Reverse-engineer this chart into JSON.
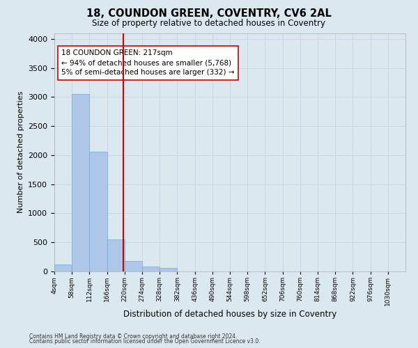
{
  "title": "18, COUNDON GREEN, COVENTRY, CV6 2AL",
  "subtitle": "Size of property relative to detached houses in Coventry",
  "xlabel": "Distribution of detached houses by size in Coventry",
  "ylabel": "Number of detached properties",
  "footnote1": "Contains HM Land Registry data © Crown copyright and database right 2024.",
  "footnote2": "Contains public sector information licensed under the Open Government Licence v3.0.",
  "annotation_line1": "18 COUNDON GREEN: 217sqm",
  "annotation_line2": "← 94% of detached houses are smaller (5,768)",
  "annotation_line3": "5% of semi-detached houses are larger (332) →",
  "property_size": 217,
  "bar_edges": [
    4,
    58,
    112,
    166,
    220,
    274,
    328,
    382,
    436,
    490,
    544,
    598,
    652,
    706,
    760,
    814,
    868,
    922,
    976,
    1030,
    1084
  ],
  "bar_heights": [
    120,
    3050,
    2060,
    550,
    175,
    80,
    55,
    0,
    0,
    0,
    0,
    0,
    0,
    0,
    0,
    0,
    0,
    0,
    0,
    0
  ],
  "bar_color": "#aec6e8",
  "bar_edgecolor": "#6baed6",
  "vline_color": "#cc0000",
  "vline_x": 217,
  "annotation_box_color": "#ffffff",
  "annotation_box_edge": "#cc0000",
  "grid_color": "#c8d8e8",
  "bg_color": "#dce8f0",
  "ylim": [
    0,
    4100
  ],
  "yticks": [
    0,
    500,
    1000,
    1500,
    2000,
    2500,
    3000,
    3500,
    4000
  ]
}
